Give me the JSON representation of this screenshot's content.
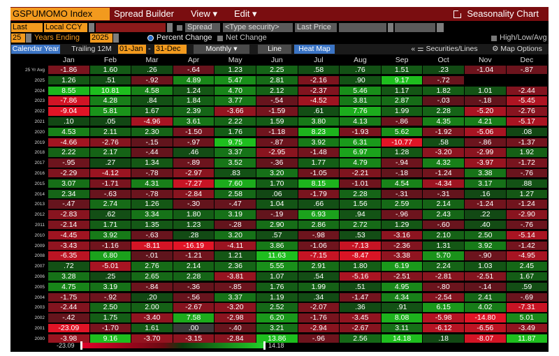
{
  "topbar": {
    "index_title": "GSPUMOMO Index",
    "spread_builder": "Spread Builder",
    "view": "View ▾",
    "edit": "Edit ▾",
    "seasonality": "Seasonality Chart"
  },
  "row2": {
    "last_price": "Last Price",
    "local_ccy": "Local CCY",
    "spread_label": "Spread",
    "type_security": "<Type security>",
    "last_price2": "Last Price"
  },
  "row3": {
    "years": "25",
    "years_label": "Years Ending",
    "ending": "2025",
    "percent_change": "Percent Change",
    "net_change": "Net Change",
    "hla": "High/Low/Avg"
  },
  "row4": {
    "calendar_year": "Calendar Year",
    "trailing": "Trailing 12M",
    "from": "01-Jan",
    "to": "31-Dec",
    "monthly": "Monthly ▾",
    "line": "Line",
    "heatmap": "Heat Map",
    "securities_lines": "Securities/Lines",
    "map_options": "Map Options"
  },
  "months": [
    "Jan",
    "Feb",
    "Mar",
    "Apr",
    "May",
    "Jun",
    "Jul",
    "Aug",
    "Sep",
    "Oct",
    "Nov",
    "Dec"
  ],
  "rows": [
    {
      "label": "25 Yr Avg",
      "vals": [
        "-1.86",
        "1.60",
        ".26",
        "-.64",
        "1.23",
        "2.25",
        ".58",
        ".76",
        "1.51",
        ".23",
        "-1.04",
        "-.87"
      ]
    },
    {
      "label": "2025",
      "vals": [
        "1.26",
        ".51",
        "-.92",
        "4.89",
        "5.47",
        "2.81",
        "-2.16",
        ".90",
        "9.17",
        "-.72",
        "",
        ""
      ]
    },
    {
      "label": "2024",
      "vals": [
        "8.55",
        "10.81",
        "4.58",
        "1.24",
        "4.70",
        "2.12",
        "-2.37",
        "5.46",
        "1.17",
        "1.82",
        "1.01",
        "-2.44"
      ]
    },
    {
      "label": "2023",
      "vals": [
        "-7.86",
        "4.28",
        ".84",
        "1.84",
        "3.77",
        "-.54",
        "-4.52",
        "3.81",
        "2.87",
        "-.03",
        "-.18",
        "-5.45"
      ]
    },
    {
      "label": "2022",
      "vals": [
        "-9.04",
        "5.81",
        "1.67",
        "2.39",
        "-3.66",
        "-1.59",
        ".61",
        "7.76",
        "1.99",
        "2.28",
        "-5.20",
        "-2.76"
      ]
    },
    {
      "label": "2021",
      "vals": [
        ".10",
        ".05",
        "-4.96",
        "3.61",
        "2.22",
        "1.59",
        "3.80",
        "4.13",
        "-.86",
        "4.35",
        "4.21",
        "-5.17"
      ]
    },
    {
      "label": "2020",
      "vals": [
        "4.53",
        "2.11",
        "2.30",
        "-1.50",
        "1.76",
        "-1.18",
        "8.23",
        "-1.93",
        "5.62",
        "-1.92",
        "-5.06",
        ".08"
      ]
    },
    {
      "label": "2019",
      "vals": [
        "-4.66",
        "-2.76",
        "-.15",
        "-.97",
        "9.75",
        "-.87",
        "3.92",
        "6.31",
        "-10.77",
        ".58",
        "-.86",
        "-1.37"
      ]
    },
    {
      "label": "2018",
      "vals": [
        "2.22",
        "2.17",
        "-.44",
        ".46",
        "3.37",
        "-2.95",
        "-1.48",
        "6.97",
        "1.28",
        "-3.20",
        "-2.99",
        "1.92"
      ]
    },
    {
      "label": "2017",
      "vals": [
        "-.95",
        ".27",
        "1.34",
        "-.89",
        "3.52",
        "-.36",
        "1.77",
        "4.79",
        "-.94",
        "4.32",
        "-3.97",
        "-1.72"
      ]
    },
    {
      "label": "2016",
      "vals": [
        "-2.29",
        "-4.12",
        "-.78",
        "-2.97",
        ".83",
        "3.20",
        "-1.05",
        "-2.21",
        "-.18",
        "-1.24",
        "3.38",
        "-.76"
      ]
    },
    {
      "label": "2015",
      "vals": [
        "3.07",
        "-1.71",
        "4.31",
        "-7.27",
        "7.60",
        "1.70",
        "8.15",
        "-1.01",
        "4.54",
        "-4.34",
        "3.17",
        ".88"
      ]
    },
    {
      "label": "2014",
      "vals": [
        "2.34",
        "-.63",
        "-.78",
        "-2.84",
        "2.58",
        ".06",
        "-1.79",
        "2.28",
        "-.31",
        "-.31",
        ".16",
        "1.27"
      ]
    },
    {
      "label": "2013",
      "vals": [
        "-.47",
        "2.74",
        "1.26",
        "-.30",
        "-.47",
        "1.04",
        ".66",
        "1.56",
        "2.59",
        "2.14",
        "-1.24",
        "-1.24"
      ]
    },
    {
      "label": "2012",
      "vals": [
        "-2.83",
        ".62",
        "3.34",
        "1.80",
        "3.19",
        "-.19",
        "6.93",
        ".94",
        "-.96",
        "2.43",
        ".22",
        "-2.90"
      ]
    },
    {
      "label": "2011",
      "vals": [
        "-2.14",
        "1.71",
        "1.35",
        "1.23",
        "-.28",
        "2.90",
        "2.86",
        "2.72",
        "1.29",
        "-.60",
        ".40",
        "-.76"
      ]
    },
    {
      "label": "2010",
      "vals": [
        "-4.45",
        "3.92",
        "-.63",
        ".28",
        "3.20",
        ".57",
        "-.98",
        ".53",
        "-3.16",
        "2.10",
        "2.50",
        "-5.14"
      ]
    },
    {
      "label": "2009",
      "vals": [
        "-3.43",
        "-1.16",
        "-8.11",
        "-16.19",
        "-4.11",
        "3.86",
        "-1.06",
        "-7.13",
        "-2.36",
        "1.31",
        "3.92",
        "-1.42"
      ]
    },
    {
      "label": "2008",
      "vals": [
        "-6.35",
        "6.80",
        "-.01",
        "-1.21",
        "1.21",
        "11.63",
        "-7.15",
        "-8.47",
        "-3.38",
        "5.70",
        "-.90",
        "-4.95"
      ]
    },
    {
      "label": "2007",
      "vals": [
        ".72",
        "-5.01",
        "2.76",
        "2.14",
        "2.36",
        "5.55",
        "2.91",
        "1.80",
        "6.19",
        "2.24",
        "1.03",
        "2.45"
      ]
    },
    {
      "label": "2006",
      "vals": [
        "3.28",
        ".25",
        "2.65",
        "2.28",
        "-3.81",
        "1.07",
        ".54",
        "-5.16",
        "-2.51",
        "-2.81",
        "-2.51",
        "1.67"
      ]
    },
    {
      "label": "2005",
      "vals": [
        "4.75",
        "3.19",
        "-.84",
        "-.36",
        "-.85",
        "1.76",
        "1.99",
        ".51",
        "4.95",
        "-.80",
        "-.14",
        ".59"
      ]
    },
    {
      "label": "2004",
      "vals": [
        "-1.75",
        "-.92",
        ".20",
        "-.56",
        "3.37",
        "1.19",
        ".34",
        "-1.47",
        "4.34",
        "-2.54",
        "2.41",
        "-.69"
      ]
    },
    {
      "label": "2003",
      "vals": [
        "-2.44",
        "2.50",
        "2.00",
        "-2.67",
        "-3.20",
        "2.52",
        "-2.07",
        ".36",
        ".91",
        "6.15",
        "4.02",
        "-7.31"
      ]
    },
    {
      "label": "2002",
      "vals": [
        "-.42",
        "1.75",
        "-3.40",
        "7.58",
        "-2.98",
        "6.20",
        "-1.76",
        "-3.45",
        "8.08",
        "-5.98",
        "-14.80",
        "5.01"
      ]
    },
    {
      "label": "2001",
      "vals": [
        "-23.09",
        "-1.70",
        "1.61",
        ".00",
        "-.40",
        "3.21",
        "-2.94",
        "-2.67",
        "3.11",
        "-6.12",
        "-6.56",
        "-3.49"
      ]
    },
    {
      "label": "2000",
      "vals": [
        "-3.98",
        "9.16",
        "-3.70",
        "-3.15",
        "-2.84",
        "13.86",
        "-.96",
        "2.56",
        "14.18",
        ".18",
        "-8.07",
        "11.87"
      ]
    }
  ],
  "legend": {
    "min": "-23.09",
    "max": "14.18",
    "min_value": -23.09,
    "max_value": 14.18
  },
  "colors": {
    "bg": "#000000",
    "title_bar": "#7a0d10",
    "orange": "#f29a1e",
    "blue": "#3b74c4",
    "neg": "#c8102e",
    "pos": "#1fb41f"
  }
}
